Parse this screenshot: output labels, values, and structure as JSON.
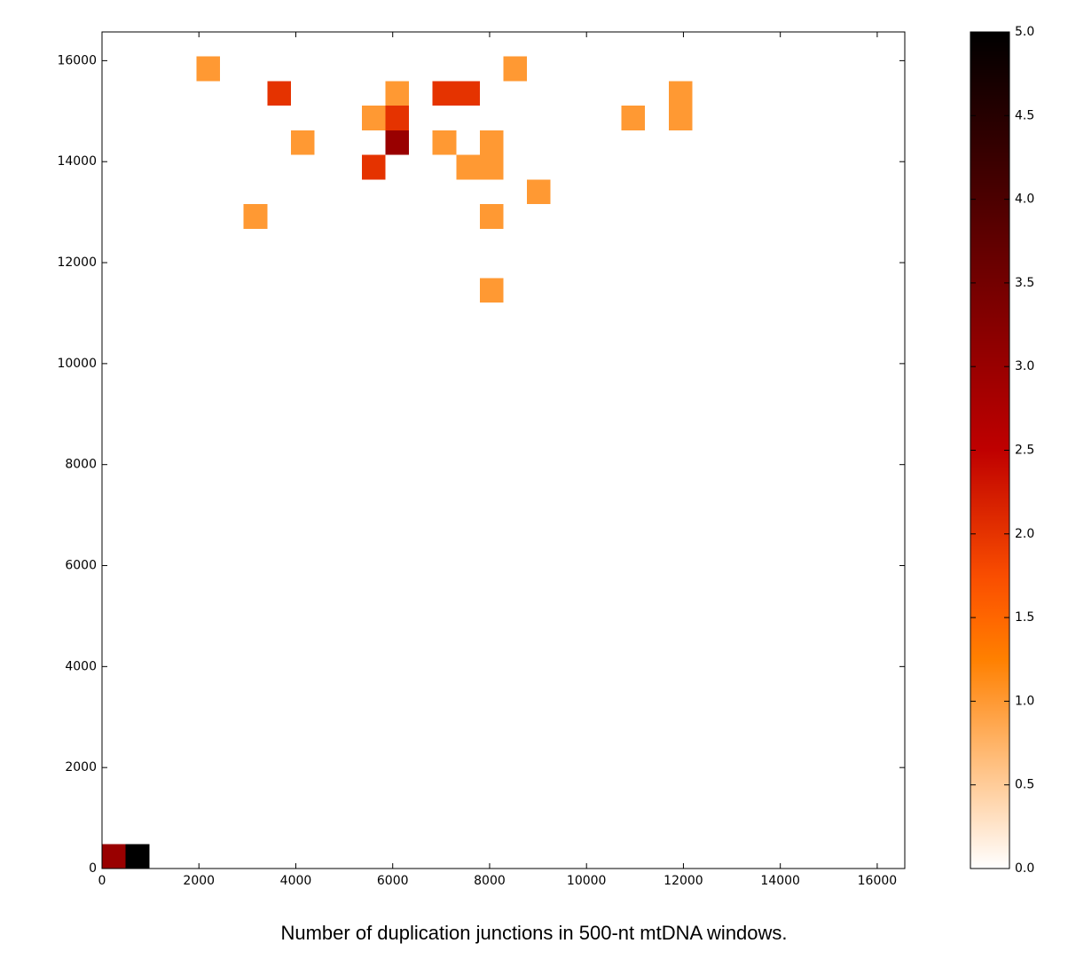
{
  "chart_data": {
    "type": "heatmap",
    "caption": "Number of duplication junctions in 500-nt mtDNA windows.",
    "xlim": [
      0,
      16569
    ],
    "ylim": [
      0,
      16569
    ],
    "xticks": [
      0,
      2000,
      4000,
      6000,
      8000,
      10000,
      12000,
      14000,
      16000
    ],
    "yticks": [
      0,
      2000,
      4000,
      6000,
      8000,
      10000,
      12000,
      14000,
      16000
    ],
    "colormap": "gist_heat_r",
    "clim": [
      0,
      5
    ],
    "cticks": [
      {
        "value": 0,
        "label": "0.0"
      },
      {
        "value": 0.5,
        "label": "0.5"
      },
      {
        "value": 1,
        "label": "1.0"
      },
      {
        "value": 1.5,
        "label": "1.5"
      },
      {
        "value": 2,
        "label": "2.0"
      },
      {
        "value": 2.5,
        "label": "2.5"
      },
      {
        "value": 3,
        "label": "3.0"
      },
      {
        "value": 3.5,
        "label": "3.5"
      },
      {
        "value": 4,
        "label": "4.0"
      },
      {
        "value": 4.5,
        "label": "4.5"
      },
      {
        "value": 5,
        "label": "5.0"
      }
    ],
    "cells": [
      {
        "x": [
          0,
          487
        ],
        "y": [
          0,
          487
        ],
        "value": 3
      },
      {
        "x": [
          487,
          975
        ],
        "y": [
          0,
          487
        ],
        "value": 5
      },
      {
        "x": [
          1949,
          2437
        ],
        "y": [
          15594,
          16082
        ],
        "value": 1
      },
      {
        "x": [
          8284,
          8772
        ],
        "y": [
          15594,
          16082
        ],
        "value": 1
      },
      {
        "x": [
          3411,
          3899
        ],
        "y": [
          15107,
          15594
        ],
        "value": 2
      },
      {
        "x": [
          5848,
          6335
        ],
        "y": [
          15107,
          15594
        ],
        "value": 1
      },
      {
        "x": [
          6822,
          7310
        ],
        "y": [
          15107,
          15594
        ],
        "value": 2
      },
      {
        "x": [
          7310,
          7797
        ],
        "y": [
          15107,
          15594
        ],
        "value": 2
      },
      {
        "x": [
          11696,
          12183
        ],
        "y": [
          15107,
          15594
        ],
        "value": 1
      },
      {
        "x": [
          11696,
          12183
        ],
        "y": [
          14620,
          15107
        ],
        "value": 1
      },
      {
        "x": [
          5361,
          5848
        ],
        "y": [
          14620,
          15107
        ],
        "value": 1
      },
      {
        "x": [
          5848,
          6335
        ],
        "y": [
          14620,
          15107
        ],
        "value": 2
      },
      {
        "x": [
          10721,
          11208
        ],
        "y": [
          14620,
          15107
        ],
        "value": 1
      },
      {
        "x": [
          3899,
          4386
        ],
        "y": [
          14132,
          14620
        ],
        "value": 1
      },
      {
        "x": [
          5848,
          6335
        ],
        "y": [
          14132,
          14620
        ],
        "value": 3
      },
      {
        "x": [
          6822,
          7310
        ],
        "y": [
          14132,
          14620
        ],
        "value": 1
      },
      {
        "x": [
          7797,
          8284
        ],
        "y": [
          14132,
          14620
        ],
        "value": 1
      },
      {
        "x": [
          7310,
          7797
        ],
        "y": [
          13645,
          14132
        ],
        "value": 1
      },
      {
        "x": [
          7797,
          8284
        ],
        "y": [
          13645,
          14132
        ],
        "value": 1
      },
      {
        "x": [
          5361,
          5848
        ],
        "y": [
          13645,
          14132
        ],
        "value": 2
      },
      {
        "x": [
          8772,
          9259
        ],
        "y": [
          13158,
          13645
        ],
        "value": 1
      },
      {
        "x": [
          2924,
          3411
        ],
        "y": [
          12670,
          13158
        ],
        "value": 1
      },
      {
        "x": [
          7797,
          8284
        ],
        "y": [
          12670,
          13158
        ],
        "value": 1
      },
      {
        "x": [
          7797,
          8284
        ],
        "y": [
          11208,
          11696
        ],
        "value": 1
      }
    ]
  }
}
